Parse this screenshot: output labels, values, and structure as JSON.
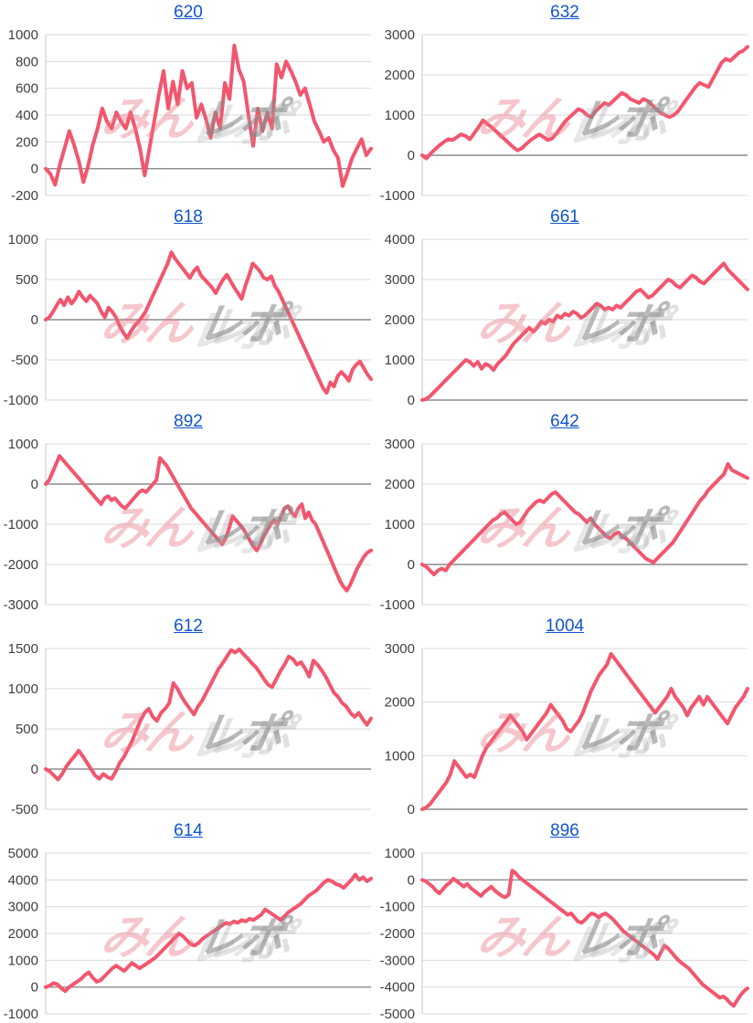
{
  "colors": {
    "series": "#f2566e",
    "grid": "#d9d9d9",
    "zero_line": "#8c8c8c",
    "axis_line": "#c8c8c8",
    "tick_label": "#404040",
    "title_link": "#1155cc",
    "watermark_pink": "#e77a86",
    "watermark_gray": "#8a8a8a"
  },
  "watermark": {
    "pink": "みん",
    "gray": "レポ"
  },
  "chart_data": [
    {
      "type": "line",
      "title": "620",
      "xlabel": "",
      "ylabel": "",
      "ylim": [
        -200,
        1000
      ],
      "ytick_step": 200,
      "grid": true,
      "legend": "none",
      "values": [
        0,
        -40,
        -120,
        30,
        150,
        280,
        180,
        60,
        -100,
        20,
        180,
        300,
        450,
        350,
        300,
        420,
        350,
        300,
        420,
        300,
        150,
        -50,
        150,
        350,
        550,
        730,
        450,
        650,
        480,
        730,
        600,
        640,
        380,
        480,
        370,
        230,
        420,
        300,
        640,
        520,
        920,
        740,
        650,
        400,
        170,
        450,
        280,
        420,
        300,
        780,
        680,
        800,
        730,
        650,
        550,
        600,
        480,
        350,
        280,
        200,
        230,
        140,
        80,
        -130,
        -30,
        80,
        150,
        220,
        100,
        150
      ]
    },
    {
      "type": "line",
      "title": "632",
      "xlabel": "",
      "ylabel": "",
      "ylim": [
        -1000,
        3000
      ],
      "ytick_step": 1000,
      "grid": true,
      "legend": "none",
      "values": [
        0,
        -80,
        50,
        150,
        250,
        330,
        400,
        380,
        450,
        520,
        480,
        400,
        550,
        700,
        870,
        780,
        700,
        600,
        500,
        400,
        300,
        200,
        120,
        180,
        280,
        380,
        450,
        520,
        450,
        380,
        420,
        550,
        700,
        850,
        950,
        1050,
        1150,
        1100,
        1000,
        950,
        1100,
        1200,
        1300,
        1250,
        1350,
        1450,
        1550,
        1500,
        1400,
        1350,
        1300,
        1400,
        1350,
        1250,
        1150,
        1050,
        1000,
        950,
        1000,
        1100,
        1250,
        1400,
        1550,
        1700,
        1800,
        1750,
        1700,
        1900,
        2100,
        2300,
        2400,
        2350,
        2450,
        2550,
        2600,
        2700
      ]
    },
    {
      "type": "line",
      "title": "618",
      "xlabel": "",
      "ylabel": "",
      "ylim": [
        -1000,
        1000
      ],
      "ytick_step": 500,
      "grid": true,
      "legend": "none",
      "values": [
        0,
        30,
        100,
        180,
        250,
        180,
        280,
        200,
        260,
        350,
        280,
        230,
        300,
        250,
        200,
        100,
        30,
        150,
        100,
        30,
        -80,
        -160,
        -230,
        -150,
        -80,
        -30,
        30,
        100,
        200,
        300,
        400,
        500,
        600,
        700,
        840,
        760,
        700,
        640,
        580,
        520,
        600,
        650,
        550,
        500,
        450,
        400,
        330,
        420,
        500,
        560,
        480,
        400,
        330,
        260,
        420,
        550,
        700,
        650,
        600,
        520,
        500,
        540,
        420,
        350,
        250,
        150,
        50,
        -50,
        -150,
        -250,
        -350,
        -450,
        -550,
        -650,
        -750,
        -850,
        -910,
        -780,
        -830,
        -700,
        -650,
        -700,
        -760,
        -620,
        -560,
        -520,
        -600,
        -680,
        -740
      ]
    },
    {
      "type": "line",
      "title": "661",
      "xlabel": "",
      "ylabel": "",
      "ylim": [
        0,
        4000
      ],
      "ytick_step": 1000,
      "grid": true,
      "legend": "none",
      "values": [
        0,
        30,
        100,
        200,
        300,
        400,
        500,
        600,
        700,
        800,
        900,
        1000,
        950,
        850,
        950,
        780,
        900,
        850,
        750,
        900,
        1000,
        1100,
        1250,
        1400,
        1500,
        1600,
        1700,
        1800,
        1700,
        1800,
        1950,
        1900,
        2000,
        1950,
        2100,
        2050,
        2150,
        2100,
        2200,
        2150,
        2050,
        2100,
        2200,
        2300,
        2400,
        2350,
        2250,
        2300,
        2250,
        2350,
        2300,
        2400,
        2500,
        2600,
        2700,
        2750,
        2650,
        2550,
        2600,
        2700,
        2800,
        2900,
        3000,
        2950,
        2850,
        2800,
        2900,
        3000,
        3100,
        3050,
        2950,
        2900,
        3000,
        3100,
        3200,
        3300,
        3400,
        3250,
        3150,
        3050,
        2950,
        2850,
        2750
      ]
    },
    {
      "type": "line",
      "title": "892",
      "xlabel": "",
      "ylabel": "",
      "ylim": [
        -3000,
        1000
      ],
      "ytick_step": 1000,
      "grid": true,
      "legend": "none",
      "values": [
        0,
        100,
        300,
        500,
        700,
        600,
        500,
        400,
        300,
        200,
        100,
        0,
        -100,
        -200,
        -300,
        -400,
        -500,
        -350,
        -300,
        -400,
        -350,
        -450,
        -550,
        -600,
        -500,
        -400,
        -300,
        -200,
        -150,
        -200,
        -100,
        0,
        100,
        650,
        550,
        450,
        300,
        150,
        0,
        -150,
        -300,
        -450,
        -600,
        -700,
        -800,
        -900,
        -1000,
        -1100,
        -1200,
        -1300,
        -1400,
        -1500,
        -1350,
        -1100,
        -800,
        -900,
        -1000,
        -1100,
        -1250,
        -1400,
        -1550,
        -1650,
        -1500,
        -1300,
        -1150,
        -1000,
        -900,
        -1000,
        -800,
        -600,
        -550,
        -700,
        -800,
        -600,
        -500,
        -850,
        -700,
        -900,
        -1000,
        -1200,
        -1400,
        -1600,
        -1800,
        -2000,
        -2200,
        -2400,
        -2550,
        -2650,
        -2500,
        -2300,
        -2100,
        -1950,
        -1800,
        -1700,
        -1650
      ]
    },
    {
      "type": "line",
      "title": "642",
      "xlabel": "",
      "ylabel": "",
      "ylim": [
        -1000,
        3000
      ],
      "ytick_step": 1000,
      "grid": true,
      "legend": "none",
      "values": [
        0,
        -50,
        -150,
        -250,
        -150,
        -100,
        -150,
        0,
        100,
        200,
        300,
        400,
        500,
        600,
        700,
        800,
        900,
        1000,
        1100,
        1150,
        1250,
        1300,
        1200,
        1100,
        1000,
        1050,
        1200,
        1350,
        1450,
        1550,
        1600,
        1550,
        1650,
        1750,
        1800,
        1700,
        1600,
        1500,
        1400,
        1300,
        1250,
        1150,
        1050,
        1150,
        1000,
        900,
        800,
        700,
        650,
        750,
        800,
        700,
        650,
        550,
        450,
        350,
        250,
        150,
        100,
        50,
        150,
        250,
        350,
        450,
        550,
        700,
        850,
        1000,
        1150,
        1300,
        1450,
        1600,
        1700,
        1850,
        1950,
        2050,
        2150,
        2250,
        2500,
        2350,
        2300,
        2250,
        2200,
        2150
      ]
    },
    {
      "type": "line",
      "title": "612",
      "xlabel": "",
      "ylabel": "",
      "ylim": [
        -500,
        1500
      ],
      "ytick_step": 500,
      "grid": true,
      "legend": "none",
      "values": [
        0,
        -30,
        -80,
        -130,
        -60,
        30,
        100,
        160,
        230,
        160,
        80,
        0,
        -80,
        -120,
        -60,
        -100,
        -120,
        -30,
        80,
        150,
        250,
        350,
        480,
        600,
        700,
        750,
        650,
        600,
        700,
        750,
        820,
        1070,
        1000,
        900,
        820,
        750,
        680,
        780,
        850,
        950,
        1050,
        1150,
        1250,
        1320,
        1400,
        1480,
        1450,
        1490,
        1430,
        1380,
        1320,
        1270,
        1200,
        1120,
        1050,
        1020,
        1120,
        1220,
        1300,
        1400,
        1370,
        1300,
        1330,
        1250,
        1150,
        1350,
        1300,
        1230,
        1150,
        1050,
        950,
        900,
        820,
        780,
        700,
        650,
        700,
        620,
        550,
        630
      ]
    },
    {
      "type": "line",
      "title": "1004",
      "xlabel": "",
      "ylabel": "",
      "ylim": [
        0,
        3000
      ],
      "ytick_step": 1000,
      "grid": true,
      "legend": "none",
      "values": [
        0,
        30,
        100,
        200,
        300,
        400,
        500,
        650,
        900,
        800,
        700,
        600,
        650,
        600,
        800,
        1000,
        1150,
        1250,
        1350,
        1450,
        1550,
        1650,
        1750,
        1650,
        1550,
        1450,
        1300,
        1400,
        1500,
        1600,
        1700,
        1800,
        1950,
        1850,
        1750,
        1650,
        1500,
        1450,
        1550,
        1650,
        1800,
        2000,
        2200,
        2350,
        2500,
        2600,
        2700,
        2900,
        2800,
        2700,
        2600,
        2500,
        2400,
        2300,
        2200,
        2100,
        2000,
        1900,
        1800,
        1900,
        2000,
        2100,
        2250,
        2100,
        2000,
        1900,
        1750,
        1900,
        2000,
        2100,
        1950,
        2100,
        2000,
        1900,
        1800,
        1700,
        1600,
        1750,
        1900,
        2000,
        2100,
        2250
      ]
    },
    {
      "type": "line",
      "title": "614",
      "xlabel": "",
      "ylabel": "",
      "ylim": [
        -1000,
        5000
      ],
      "ytick_step": 1000,
      "grid": true,
      "legend": "none",
      "values": [
        0,
        50,
        150,
        100,
        -50,
        -150,
        0,
        100,
        200,
        300,
        450,
        550,
        350,
        200,
        250,
        400,
        550,
        700,
        800,
        700,
        600,
        750,
        900,
        800,
        700,
        800,
        900,
        1000,
        1100,
        1250,
        1400,
        1550,
        1700,
        1850,
        2000,
        1900,
        1750,
        1600,
        1550,
        1650,
        1800,
        1900,
        2000,
        2100,
        2200,
        2300,
        2400,
        2350,
        2450,
        2400,
        2500,
        2450,
        2550,
        2500,
        2600,
        2700,
        2900,
        2800,
        2700,
        2600,
        2500,
        2650,
        2800,
        2900,
        3000,
        3100,
        3250,
        3400,
        3500,
        3600,
        3750,
        3900,
        4000,
        3950,
        3850,
        3800,
        3700,
        3850,
        4000,
        4200,
        4000,
        4100,
        3950,
        4050
      ]
    },
    {
      "type": "line",
      "title": "896",
      "xlabel": "",
      "ylabel": "",
      "ylim": [
        -5000,
        1000
      ],
      "ytick_step": 1000,
      "grid": true,
      "legend": "none",
      "values": [
        0,
        -50,
        -150,
        -250,
        -400,
        -500,
        -350,
        -200,
        -100,
        50,
        -50,
        -150,
        -250,
        -150,
        -300,
        -400,
        -500,
        -600,
        -450,
        -350,
        -250,
        -400,
        -500,
        -600,
        -650,
        -550,
        350,
        250,
        100,
        0,
        -100,
        -200,
        -300,
        -400,
        -500,
        -600,
        -700,
        -800,
        -900,
        -1000,
        -1100,
        -1200,
        -1300,
        -1250,
        -1400,
        -1550,
        -1600,
        -1500,
        -1350,
        -1250,
        -1300,
        -1400,
        -1300,
        -1250,
        -1350,
        -1450,
        -1600,
        -1750,
        -1900,
        -2000,
        -2100,
        -2200,
        -2300,
        -2400,
        -2500,
        -2600,
        -2700,
        -2800,
        -2950,
        -2700,
        -2450,
        -2550,
        -2700,
        -2850,
        -3000,
        -3100,
        -3200,
        -3300,
        -3450,
        -3600,
        -3750,
        -3900,
        -4000,
        -4100,
        -4200,
        -4300,
        -4400,
        -4350,
        -4450,
        -4600,
        -4700,
        -4500,
        -4300,
        -4150,
        -4050
      ]
    }
  ]
}
